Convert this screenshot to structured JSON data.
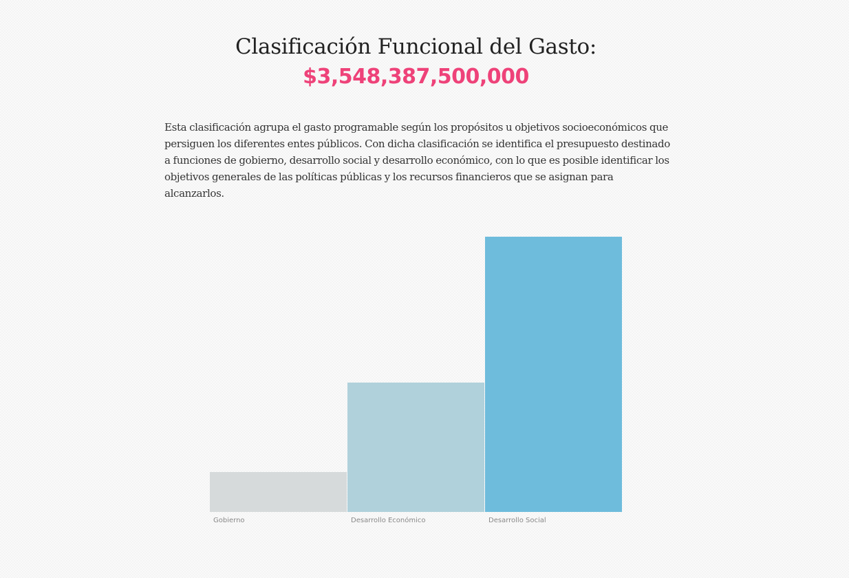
{
  "header": {
    "title": "Clasificación Funcional del Gasto:",
    "total": "$3,548,387,500,000"
  },
  "description": "Esta clasificación agrupa el gasto programable según los propósitos u objetivos socioeconómicos que persiguen los diferentes entes públicos. Con dicha clasificación se identifica el presupuesto destinado a funciones de gobierno, desarrollo social y desarrollo económico, con lo que es posible identificar los objetivos generales de las políticas públicas y los recursos financieros que se asignan para alcanzarlos.",
  "chart_data": {
    "type": "bar",
    "categories": [
      "Gobierno",
      "Desarrollo Económico",
      "Desarrollo Social"
    ],
    "values": [
      0.145,
      0.47,
      1.0
    ],
    "colors": [
      "#d6dadb",
      "#b0d1db",
      "#6ebcdc"
    ],
    "title": "",
    "xlabel": "",
    "ylabel": "",
    "ylim": [
      0,
      1
    ],
    "grid": false
  }
}
